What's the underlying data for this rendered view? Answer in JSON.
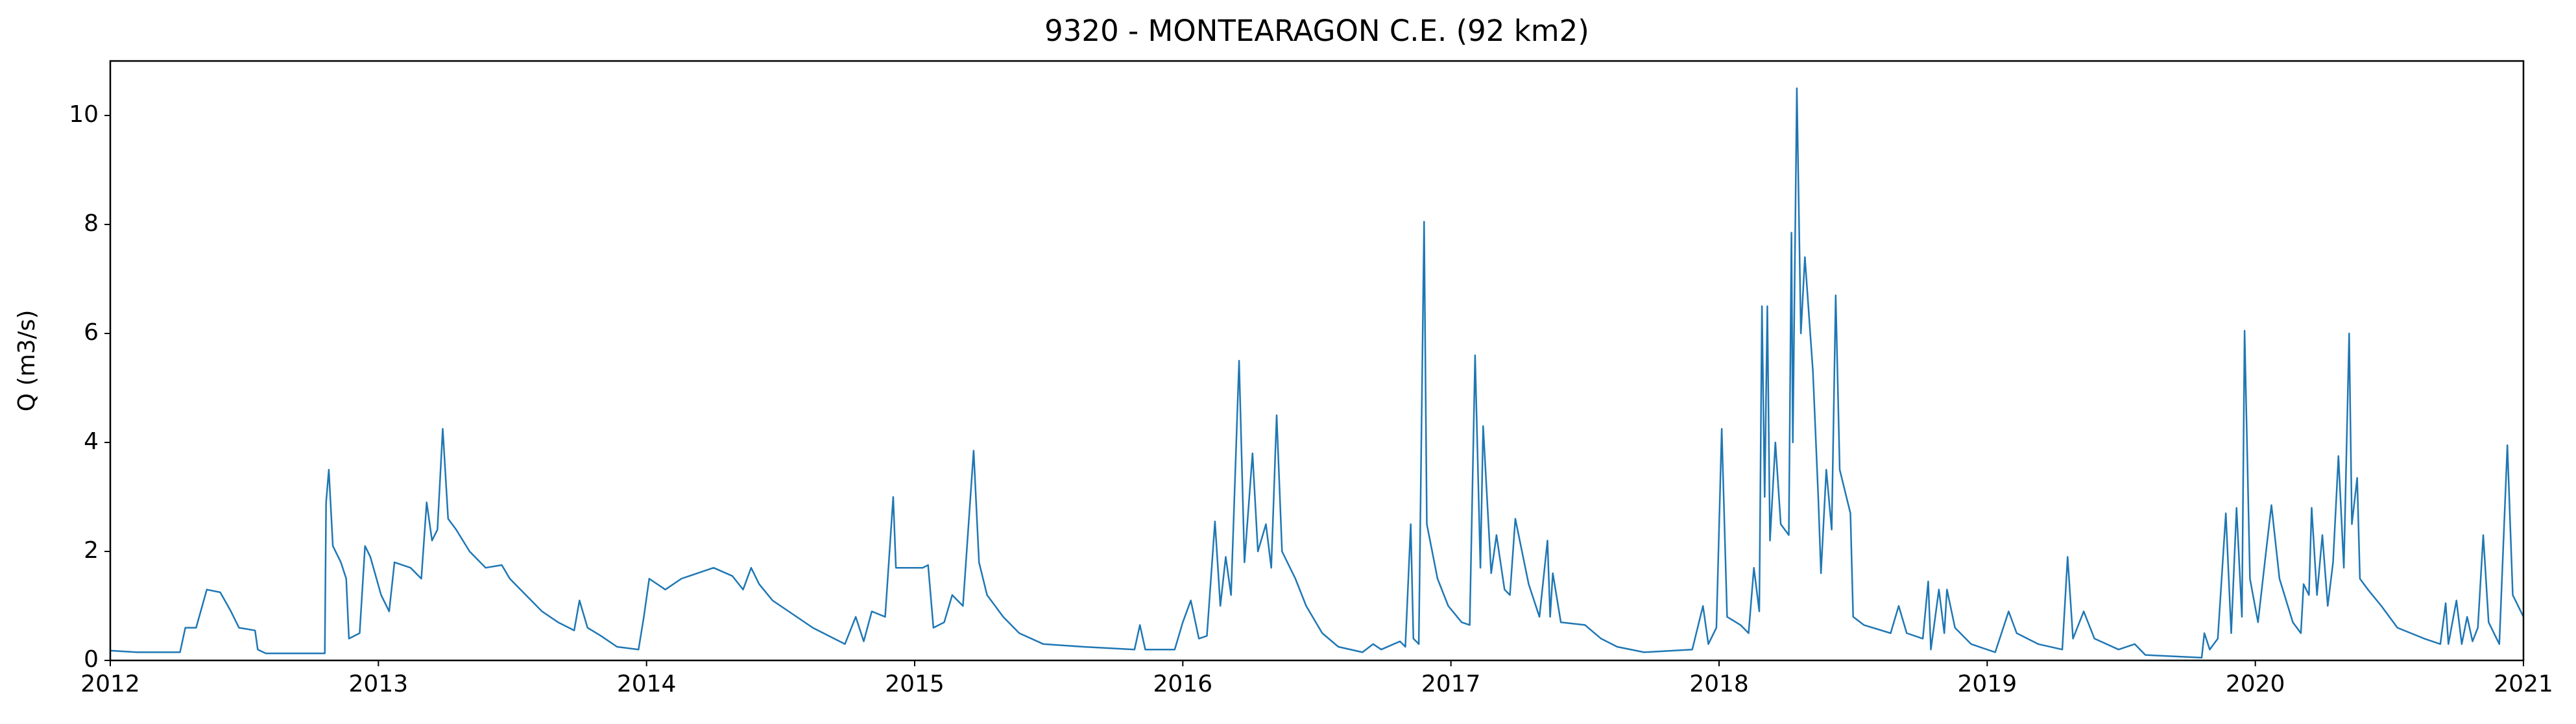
{
  "chart_data": {
    "type": "line",
    "title": "9320 - MONTEARAGON C.E. (92 km2)",
    "y_label": "Q (m3/s)",
    "xlim": [
      2012,
      2021
    ],
    "xticks": [
      2012,
      2013,
      2014,
      2015,
      2016,
      2017,
      2018,
      2019,
      2020,
      2021
    ],
    "ylim": [
      0,
      11
    ],
    "yticks": [
      0,
      2,
      4,
      6,
      8,
      10
    ],
    "grid": false,
    "x": [
      2012.0,
      2012.1,
      2012.26,
      2012.28,
      2012.32,
      2012.36,
      2012.41,
      2012.45,
      2012.48,
      2012.54,
      2012.55,
      2012.58,
      2012.8,
      2012.805,
      2012.815,
      2012.83,
      2012.86,
      2012.88,
      2012.89,
      2012.93,
      2012.95,
      2012.97,
      2013.01,
      2013.04,
      2013.06,
      2013.12,
      2013.16,
      2013.18,
      2013.2,
      2013.22,
      2013.24,
      2013.26,
      2013.29,
      2013.34,
      2013.4,
      2013.46,
      2013.49,
      2013.55,
      2013.61,
      2013.67,
      2013.73,
      2013.75,
      2013.78,
      2013.83,
      2013.89,
      2013.97,
      2013.99,
      2014.01,
      2014.07,
      2014.13,
      2014.19,
      2014.25,
      2014.32,
      2014.36,
      2014.39,
      2014.42,
      2014.47,
      2014.53,
      2014.62,
      2014.68,
      2014.74,
      2014.78,
      2014.81,
      2014.84,
      2014.89,
      2014.92,
      2014.93,
      2015.03,
      2015.05,
      2015.07,
      2015.11,
      2015.14,
      2015.18,
      2015.22,
      2015.24,
      2015.27,
      2015.33,
      2015.39,
      2015.48,
      2015.63,
      2015.82,
      2015.84,
      2015.86,
      2015.97,
      2016.0,
      2016.03,
      2016.06,
      2016.09,
      2016.12,
      2016.14,
      2016.16,
      2016.18,
      2016.21,
      2016.23,
      2016.26,
      2016.28,
      2016.31,
      2016.33,
      2016.35,
      2016.37,
      2016.42,
      2016.46,
      2016.52,
      2016.58,
      2016.67,
      2016.71,
      2016.74,
      2016.81,
      2016.83,
      2016.85,
      2016.86,
      2016.88,
      2016.9,
      2016.91,
      2016.95,
      2016.99,
      2017.04,
      2017.07,
      2017.09,
      2017.11,
      2017.12,
      2017.15,
      2017.17,
      2017.2,
      2017.22,
      2017.24,
      2017.29,
      2017.33,
      2017.36,
      2017.37,
      2017.38,
      2017.41,
      2017.5,
      2017.56,
      2017.62,
      2017.72,
      2017.9,
      2017.94,
      2017.96,
      2017.99,
      2018.01,
      2018.03,
      2018.08,
      2018.11,
      2018.13,
      2018.15,
      2018.16,
      2018.17,
      2018.18,
      2018.19,
      2018.21,
      2018.23,
      2018.26,
      2018.27,
      2018.275,
      2018.29,
      2018.305,
      2018.32,
      2018.35,
      2018.37,
      2018.38,
      2018.4,
      2018.42,
      2018.435,
      2018.45,
      2018.49,
      2018.5,
      2018.54,
      2018.64,
      2018.67,
      2018.7,
      2018.76,
      2018.78,
      2018.79,
      2018.82,
      2018.84,
      2018.85,
      2018.88,
      2018.94,
      2019.03,
      2019.08,
      2019.11,
      2019.19,
      2019.28,
      2019.3,
      2019.32,
      2019.36,
      2019.4,
      2019.49,
      2019.55,
      2019.59,
      2019.8,
      2019.81,
      2019.83,
      2019.86,
      2019.89,
      2019.91,
      2019.93,
      2019.95,
      2019.96,
      2019.98,
      2020.01,
      2020.04,
      2020.06,
      2020.09,
      2020.14,
      2020.17,
      2020.18,
      2020.2,
      2020.21,
      2020.23,
      2020.25,
      2020.27,
      2020.29,
      2020.31,
      2020.33,
      2020.35,
      2020.36,
      2020.38,
      2020.39,
      2020.42,
      2020.47,
      2020.53,
      2020.63,
      2020.69,
      2020.71,
      2020.72,
      2020.75,
      2020.77,
      2020.79,
      2020.81,
      2020.83,
      2020.85,
      2020.87,
      2020.91,
      2020.94,
      2020.96,
      2021.0
    ],
    "series": [
      {
        "color": "#1f77b4",
        "values": [
          0.18,
          0.15,
          0.15,
          0.6,
          0.6,
          1.3,
          1.25,
          0.9,
          0.6,
          0.55,
          0.2,
          0.13,
          0.13,
          2.9,
          3.5,
          2.1,
          1.8,
          1.5,
          0.4,
          0.5,
          2.1,
          1.9,
          1.2,
          0.9,
          1.8,
          1.7,
          1.5,
          2.9,
          2.2,
          2.4,
          4.25,
          2.6,
          2.4,
          2.0,
          1.7,
          1.75,
          1.5,
          1.2,
          0.9,
          0.7,
          0.55,
          1.1,
          0.6,
          0.45,
          0.25,
          0.2,
          0.8,
          1.5,
          1.3,
          1.5,
          1.6,
          1.7,
          1.55,
          1.3,
          1.7,
          1.4,
          1.1,
          0.9,
          0.6,
          0.45,
          0.3,
          0.8,
          0.35,
          0.9,
          0.8,
          3.0,
          1.7,
          1.7,
          1.75,
          0.6,
          0.7,
          1.2,
          1.0,
          3.85,
          1.8,
          1.2,
          0.8,
          0.5,
          0.3,
          0.25,
          0.2,
          0.65,
          0.2,
          0.2,
          0.7,
          1.1,
          0.4,
          0.45,
          2.55,
          1.0,
          1.9,
          1.2,
          5.5,
          1.8,
          3.8,
          2.0,
          2.5,
          1.7,
          4.5,
          2.0,
          1.5,
          1.0,
          0.5,
          0.25,
          0.15,
          0.3,
          0.2,
          0.35,
          0.25,
          2.5,
          0.4,
          0.3,
          8.05,
          2.5,
          1.5,
          1.0,
          0.7,
          0.65,
          5.6,
          1.7,
          4.3,
          1.6,
          2.3,
          1.3,
          1.2,
          2.6,
          1.4,
          0.8,
          2.2,
          0.8,
          1.6,
          0.7,
          0.65,
          0.4,
          0.25,
          0.15,
          0.2,
          1.0,
          0.3,
          0.6,
          4.25,
          0.8,
          0.65,
          0.5,
          1.7,
          0.9,
          6.5,
          3.0,
          6.5,
          2.2,
          4.0,
          2.5,
          2.3,
          7.85,
          4.0,
          10.5,
          6.0,
          7.4,
          5.3,
          3.0,
          1.6,
          3.5,
          2.4,
          6.7,
          3.5,
          2.7,
          0.8,
          0.65,
          0.5,
          1.0,
          0.5,
          0.4,
          1.45,
          0.2,
          1.3,
          0.5,
          1.3,
          0.6,
          0.3,
          0.15,
          0.9,
          0.5,
          0.3,
          0.2,
          1.9,
          0.4,
          0.9,
          0.4,
          0.2,
          0.3,
          0.1,
          0.05,
          0.5,
          0.2,
          0.4,
          2.7,
          0.5,
          2.8,
          0.8,
          6.05,
          1.5,
          0.7,
          2.0,
          2.85,
          1.5,
          0.7,
          0.5,
          1.4,
          1.2,
          2.8,
          1.2,
          2.3,
          1.0,
          1.8,
          3.75,
          1.7,
          6.0,
          2.5,
          3.35,
          1.5,
          1.3,
          1.0,
          0.6,
          0.4,
          0.3,
          1.05,
          0.3,
          1.1,
          0.3,
          0.8,
          0.35,
          0.6,
          2.3,
          0.7,
          0.3,
          3.95,
          1.2,
          0.8
        ]
      }
    ]
  }
}
